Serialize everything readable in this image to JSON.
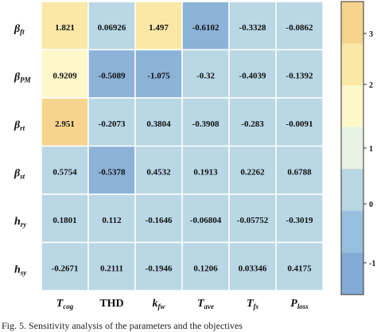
{
  "chart_data": {
    "type": "heatmap",
    "rows": [
      {
        "base": "β",
        "sub": "ft"
      },
      {
        "base": "β",
        "sub": "PM"
      },
      {
        "base": "β",
        "sub": "rt"
      },
      {
        "base": "β",
        "sub": "st"
      },
      {
        "base": "h",
        "sub": "ry"
      },
      {
        "base": "h",
        "sub": "sy"
      }
    ],
    "columns": [
      {
        "base": "T",
        "sub": "cog",
        "italic": true
      },
      {
        "base": "THD",
        "sub": "",
        "italic": false
      },
      {
        "base": "k",
        "sub": "fw",
        "italic": true
      },
      {
        "base": "T",
        "sub": "ave",
        "italic": true
      },
      {
        "base": "T",
        "sub": "fs",
        "italic": true
      },
      {
        "base": "P",
        "sub": "loss",
        "italic": true
      }
    ],
    "values": [
      [
        "1.821",
        "0.06926",
        "1.497",
        "-0.6102",
        "-0.3328",
        "-0.0862"
      ],
      [
        "0.9209",
        "-0.5089",
        "-1.075",
        "-0.32",
        "-0.4039",
        "-0.1392"
      ],
      [
        "2.951",
        "-0.2073",
        "0.3804",
        "-0.3908",
        "-0.283",
        "-0.0091"
      ],
      [
        "0.5754",
        "-0.5378",
        "0.4532",
        "0.1913",
        "0.2262",
        "0.6788"
      ],
      [
        "0.1801",
        "0.112",
        "-0.1646",
        "-0.06804",
        "-0.05752",
        "-0.3019"
      ],
      [
        "-0.2671",
        "0.2111",
        "-0.1946",
        "0.1206",
        "0.03346",
        "0.4175"
      ]
    ],
    "colorbar": {
      "ticks": [
        "3",
        "2",
        "1",
        "0",
        "-1"
      ],
      "levels": [
        {
          "color": "#f6d48e"
        },
        {
          "color": "#f9e8a6"
        },
        {
          "color": "#fdf7ca"
        },
        {
          "color": "#e7f1e4"
        },
        {
          "color": "#b8d6e3"
        },
        {
          "color": "#98bfde"
        },
        {
          "color": "#84abd6"
        }
      ]
    },
    "colors": {
      "high": "#f6d48e",
      "mid_high": "#f9e8a6",
      "pale": "#fdf7ca",
      "neutral": "#b9d7e5",
      "low": "#8cb2d8",
      "border": "#ffffff"
    }
  },
  "caption": "Fig. 5.   Sensitivity analysis of the parameters and the objectives"
}
